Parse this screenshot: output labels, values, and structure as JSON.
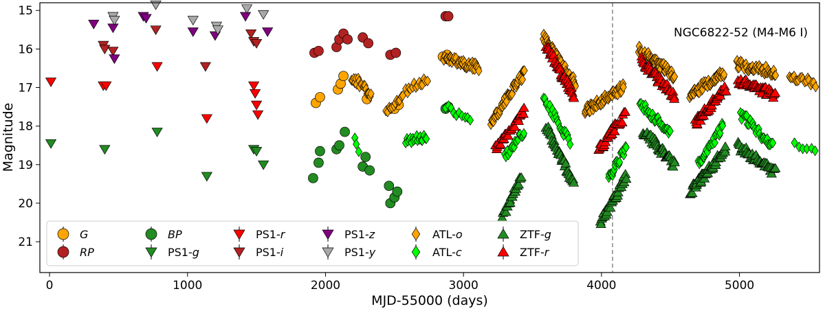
{
  "chart_data": {
    "type": "scatter",
    "title": "",
    "annotation": "NGC6822-52 (M4-M6 I)",
    "xlabel": "MJD-55000 (days)",
    "ylabel": "Magnitude",
    "xlim": [
      -70,
      5580
    ],
    "ylim": [
      21.8,
      14.8
    ],
    "y_inverted": true,
    "xticks": [
      0,
      1000,
      2000,
      3000,
      4000,
      5000
    ],
    "xtick_labels": [
      "0",
      "1000",
      "2000",
      "3000",
      "4000",
      "5000"
    ],
    "yticks": [
      15,
      16,
      17,
      18,
      19,
      20,
      21
    ],
    "ytick_labels": [
      "15",
      "16",
      "17",
      "18",
      "19",
      "20",
      "21"
    ],
    "vline_x": 4080,
    "legend_position": "bottom-left",
    "legend_columns": 6,
    "series": [
      {
        "name": "G",
        "label_italic": "G",
        "label_suffix": "",
        "marker": "circle",
        "color": "#ffa500",
        "points": [
          [
            1930,
            17.4
          ],
          [
            1960,
            17.25
          ],
          [
            2090,
            17.05
          ],
          [
            2110,
            16.9
          ],
          [
            2130,
            16.7
          ],
          [
            2300,
            17.3
          ],
          [
            2470,
            17.55
          ],
          [
            2500,
            17.55
          ],
          [
            2530,
            17.45
          ],
          [
            2850,
            16.2
          ],
          [
            2870,
            16.25
          ],
          [
            2880,
            16.15
          ]
        ]
      },
      {
        "name": "RP",
        "label_italic": "RP",
        "label_suffix": "",
        "marker": "circle",
        "color": "#b22222",
        "points": [
          [
            1920,
            16.1
          ],
          [
            1950,
            16.05
          ],
          [
            2080,
            15.95
          ],
          [
            2100,
            15.75
          ],
          [
            2130,
            15.6
          ],
          [
            2160,
            15.75
          ],
          [
            2270,
            15.7
          ],
          [
            2310,
            15.85
          ],
          [
            2470,
            16.15
          ],
          [
            2510,
            16.1
          ],
          [
            2870,
            15.15
          ],
          [
            2890,
            15.15
          ]
        ]
      },
      {
        "name": "BP",
        "label_italic": "BP",
        "label_suffix": "",
        "marker": "circle",
        "color": "#228b22",
        "points": [
          [
            1910,
            19.35
          ],
          [
            1950,
            18.95
          ],
          [
            1960,
            18.65
          ],
          [
            2080,
            18.6
          ],
          [
            2100,
            18.5
          ],
          [
            2140,
            18.15
          ],
          [
            2270,
            19.05
          ],
          [
            2290,
            18.8
          ],
          [
            2320,
            19.15
          ],
          [
            2460,
            19.55
          ],
          [
            2470,
            20.0
          ],
          [
            2500,
            19.85
          ],
          [
            2520,
            19.7
          ],
          [
            2870,
            17.55
          ],
          [
            2890,
            17.5
          ]
        ]
      },
      {
        "name": "PS1-g",
        "label_italic": "g",
        "label_suffix": "PS1-",
        "marker": "down",
        "color": "#228b22",
        "points": [
          [
            10,
            18.45
          ],
          [
            400,
            18.6
          ],
          [
            780,
            18.15
          ],
          [
            1140,
            19.3
          ],
          [
            1480,
            18.6
          ],
          [
            1500,
            18.65
          ],
          [
            1550,
            19.0
          ]
        ]
      },
      {
        "name": "PS1-r",
        "label_italic": "r",
        "label_suffix": "PS1-",
        "marker": "down",
        "color": "#ff0000",
        "points": [
          [
            10,
            16.85
          ],
          [
            390,
            16.95
          ],
          [
            410,
            16.95
          ],
          [
            780,
            16.45
          ],
          [
            1140,
            17.8
          ],
          [
            1480,
            16.95
          ],
          [
            1490,
            17.15
          ],
          [
            1500,
            17.45
          ],
          [
            1510,
            17.7
          ]
        ]
      },
      {
        "name": "PS1-i",
        "label_italic": "i",
        "label_suffix": "PS1-",
        "marker": "down",
        "color": "#b22222",
        "points": [
          [
            390,
            15.9
          ],
          [
            400,
            16.0
          ],
          [
            460,
            16.05
          ],
          [
            770,
            15.5
          ],
          [
            1130,
            16.45
          ],
          [
            1460,
            15.6
          ],
          [
            1480,
            15.8
          ],
          [
            1500,
            15.85
          ]
        ]
      },
      {
        "name": "PS1-z",
        "label_italic": "z",
        "label_suffix": "PS1-",
        "marker": "down",
        "color": "#800080",
        "points": [
          [
            320,
            15.35
          ],
          [
            460,
            15.45
          ],
          [
            470,
            16.25
          ],
          [
            680,
            15.15
          ],
          [
            700,
            15.2
          ],
          [
            1040,
            15.55
          ],
          [
            1200,
            15.65
          ],
          [
            1420,
            15.15
          ],
          [
            1580,
            15.55
          ]
        ]
      },
      {
        "name": "PS1-y",
        "label_italic": "y",
        "label_suffix": "PS1-",
        "marker": "down",
        "color": "#a9a9a9",
        "points": [
          [
            460,
            15.15
          ],
          [
            470,
            15.25
          ],
          [
            770,
            14.85
          ],
          [
            1040,
            15.25
          ],
          [
            1210,
            15.4
          ],
          [
            1220,
            15.5
          ],
          [
            1430,
            14.95
          ],
          [
            1550,
            15.1
          ]
        ]
      },
      {
        "name": "ATL-o",
        "label_italic": "o",
        "label_suffix": "ATL-",
        "marker": "diamond",
        "color": "#ffa500",
        "segments": [
          [
            2190,
            2330,
            16.7,
            17.2,
            20
          ],
          [
            2440,
            2560,
            17.6,
            17.3,
            12
          ],
          [
            2580,
            2740,
            17.1,
            16.8,
            14
          ],
          [
            2860,
            3110,
            16.2,
            16.5,
            44
          ],
          [
            3200,
            3440,
            17.9,
            16.6,
            46
          ],
          [
            3580,
            3810,
            15.7,
            16.9,
            52
          ],
          [
            3880,
            4160,
            17.6,
            17.0,
            58
          ],
          [
            4270,
            4530,
            16.0,
            16.7,
            52
          ],
          [
            4640,
            4890,
            17.2,
            16.6,
            54
          ],
          [
            4980,
            5260,
            16.4,
            16.6,
            50
          ],
          [
            5360,
            5550,
            16.7,
            16.9,
            18
          ]
        ]
      },
      {
        "name": "ATL-c",
        "label_italic": "c",
        "label_suffix": "ATL-",
        "marker": "diamond",
        "color": "#00ff00",
        "segments": [
          [
            2210,
            2240,
            18.4,
            18.6,
            3
          ],
          [
            2580,
            2730,
            18.4,
            18.3,
            18
          ],
          [
            2870,
            3050,
            17.5,
            17.8,
            10
          ],
          [
            3300,
            3440,
            18.8,
            18.1,
            16
          ],
          [
            3580,
            3770,
            17.3,
            18.4,
            22
          ],
          [
            4050,
            4180,
            19.4,
            18.5,
            20
          ],
          [
            4280,
            4500,
            17.4,
            18.2,
            30
          ],
          [
            4700,
            4880,
            19.0,
            18.0,
            28
          ],
          [
            5010,
            5240,
            17.7,
            18.5,
            30
          ],
          [
            5400,
            5550,
            18.4,
            18.6,
            6
          ]
        ]
      },
      {
        "name": "ZTF-g",
        "label_italic": "g",
        "label_suffix": "ZTF-",
        "marker": "up",
        "color": "#228b22",
        "segments": [
          [
            3280,
            3420,
            20.4,
            19.3,
            22
          ],
          [
            3600,
            3800,
            18.0,
            19.5,
            34
          ],
          [
            3990,
            4180,
            20.5,
            19.3,
            30
          ],
          [
            4300,
            4530,
            18.1,
            19.0,
            36
          ],
          [
            4640,
            4900,
            19.7,
            18.6,
            50
          ],
          [
            4990,
            5260,
            18.5,
            19.2,
            44
          ]
        ]
      },
      {
        "name": "ZTF-r",
        "label_italic": "r",
        "label_suffix": "ZTF-",
        "marker": "up",
        "color": "#ff0000",
        "segments": [
          [
            3230,
            3440,
            18.6,
            17.6,
            28
          ],
          [
            3600,
            3800,
            15.9,
            17.2,
            40
          ],
          [
            3980,
            4170,
            18.6,
            17.7,
            28
          ],
          [
            4290,
            4530,
            16.3,
            17.2,
            40
          ],
          [
            4680,
            4900,
            17.9,
            17.0,
            44
          ],
          [
            4990,
            5260,
            16.8,
            17.2,
            42
          ]
        ]
      }
    ]
  }
}
